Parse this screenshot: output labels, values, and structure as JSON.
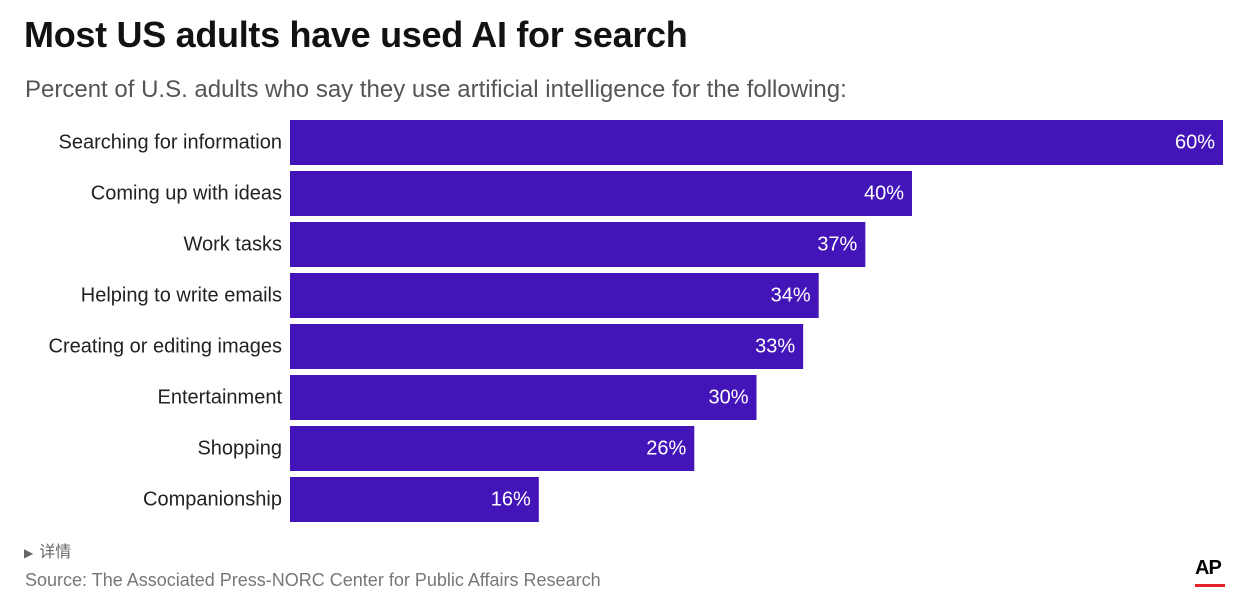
{
  "title": "Most US adults have used AI for search",
  "subtitle": "Percent of U.S. adults who say they use artificial intelligence for the following:",
  "details": {
    "arrow": "▶",
    "label": "详情"
  },
  "source": "Source: The Associated Press-NORC Center for Public Affairs Research",
  "logo": {
    "text": "AP",
    "bar_color": "#e4222e"
  },
  "colors": {
    "bar": "#4315b8",
    "bar_label": "#ffffff",
    "category_label": "#222222"
  },
  "chart_data": {
    "type": "bar",
    "orientation": "horizontal",
    "categories": [
      "Searching for information",
      "Coming up with ideas",
      "Work tasks",
      "Helping to write emails",
      "Creating or editing images",
      "Entertainment",
      "Shopping",
      "Companionship"
    ],
    "values": [
      60,
      40,
      37,
      34,
      33,
      30,
      26,
      16
    ],
    "value_labels": [
      "60%",
      "40%",
      "37%",
      "34%",
      "33%",
      "30%",
      "26%",
      "16%"
    ],
    "xlim": [
      0,
      60
    ],
    "grid": false,
    "legend": "none"
  }
}
